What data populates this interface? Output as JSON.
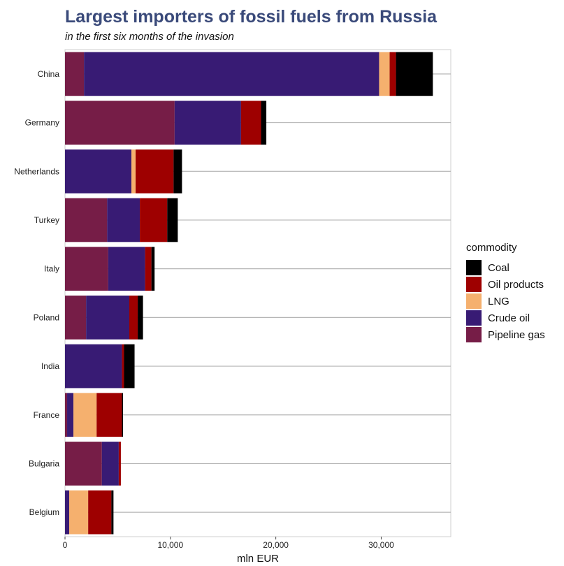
{
  "title": "Largest importers of fossil fuels from Russia",
  "subtitle": "in the first six months of the invasion",
  "legend_title": "commodity",
  "chart_data": {
    "type": "bar",
    "orientation": "horizontal",
    "stacked": true,
    "title": "Largest importers of fossil fuels from Russia",
    "subtitle": "in the first six months of the invasion",
    "xlabel": "mln EUR",
    "ylabel": "",
    "xlim": [
      0,
      36600
    ],
    "xticks": [
      0,
      10000,
      20000,
      30000
    ],
    "xtick_labels": [
      "0",
      "10,000",
      "20,000",
      "30,000"
    ],
    "grid": "horizontal lines at each category",
    "legend_position": "right",
    "categories": [
      "China",
      "Germany",
      "Netherlands",
      "Turkey",
      "Italy",
      "Poland",
      "India",
      "France",
      "Bulgaria",
      "Belgium"
    ],
    "series": [
      {
        "name": "Pipeline gas",
        "color": "#761d47",
        "values": [
          1800,
          10400,
          0,
          4000,
          4100,
          2000,
          0,
          200,
          3500,
          0
        ]
      },
      {
        "name": "Crude oil",
        "color": "#381b74",
        "values": [
          28000,
          6300,
          6300,
          3100,
          3500,
          4100,
          5400,
          600,
          1600,
          400
        ]
      },
      {
        "name": "LNG",
        "color": "#f5b06e",
        "values": [
          1000,
          0,
          400,
          0,
          0,
          0,
          0,
          2200,
          0,
          1800
        ]
      },
      {
        "name": "Oil products",
        "color": "#9e0000",
        "values": [
          600,
          1900,
          3600,
          2600,
          600,
          800,
          200,
          2400,
          200,
          2200
        ]
      },
      {
        "name": "Coal",
        "color": "#000000",
        "values": [
          3500,
          500,
          800,
          1000,
          300,
          500,
          1000,
          100,
          0,
          200
        ]
      }
    ]
  },
  "legend_items": [
    {
      "label": "Coal",
      "color": "#000000"
    },
    {
      "label": "Oil products",
      "color": "#9e0000"
    },
    {
      "label": "LNG",
      "color": "#f5b06e"
    },
    {
      "label": "Crude oil",
      "color": "#381b74"
    },
    {
      "label": "Pipeline gas",
      "color": "#761d47"
    }
  ]
}
